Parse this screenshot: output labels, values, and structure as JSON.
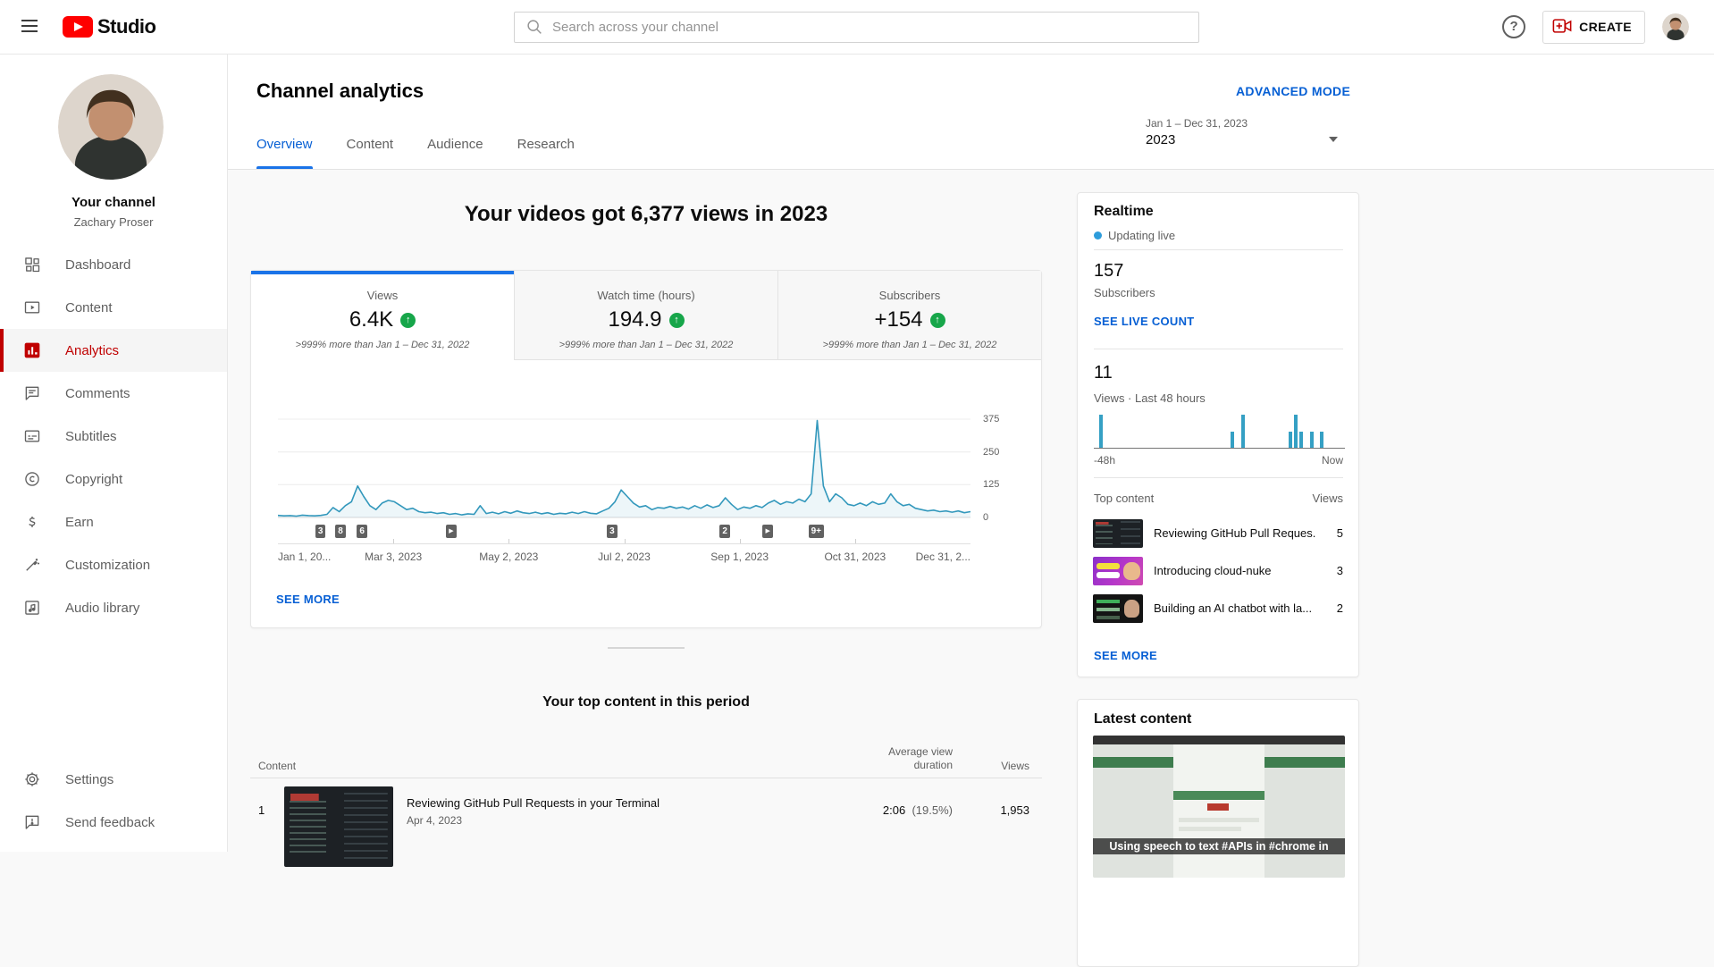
{
  "topbar": {
    "logo_text": "Studio",
    "search": {
      "placeholder": "Search across your channel"
    },
    "help_glyph": "?",
    "create_label": "CREATE"
  },
  "sidebar": {
    "channel_label": "Your channel",
    "owner_name": "Zachary Proser",
    "items": [
      {
        "label": "Dashboard",
        "icon": "dashboard",
        "active": false
      },
      {
        "label": "Content",
        "icon": "content",
        "active": false
      },
      {
        "label": "Analytics",
        "icon": "analytics",
        "active": true
      },
      {
        "label": "Comments",
        "icon": "comments",
        "active": false
      },
      {
        "label": "Subtitles",
        "icon": "subtitles",
        "active": false
      },
      {
        "label": "Copyright",
        "icon": "copyright",
        "active": false
      },
      {
        "label": "Earn",
        "icon": "earn",
        "active": false
      },
      {
        "label": "Customization",
        "icon": "customization",
        "active": false
      },
      {
        "label": "Audio library",
        "icon": "audio-library",
        "active": false
      }
    ],
    "footer_items": [
      {
        "label": "Settings",
        "icon": "settings"
      },
      {
        "label": "Send feedback",
        "icon": "feedback"
      }
    ]
  },
  "header": {
    "title": "Channel analytics",
    "advanced_mode": "ADVANCED MODE",
    "tabs": [
      {
        "label": "Overview",
        "active": true
      },
      {
        "label": "Content",
        "active": false
      },
      {
        "label": "Audience",
        "active": false
      },
      {
        "label": "Research",
        "active": false
      }
    ],
    "date_range": "Jan 1 – Dec 31, 2023",
    "date_label": "2023"
  },
  "overview": {
    "headline": "Your videos got 6,377 views in 2023",
    "metrics": [
      {
        "label": "Views",
        "value": "6.4K",
        "delta": ">999% more than Jan 1 – Dec 31, 2022",
        "active": true
      },
      {
        "label": "Watch time (hours)",
        "value": "194.9",
        "delta": ">999% more than Jan 1 – Dec 31, 2022",
        "active": false
      },
      {
        "label": "Subscribers",
        "value": "+154",
        "delta": ">999% more than Jan 1 – Dec 31, 2022",
        "active": false
      }
    ],
    "see_more": "SEE MORE"
  },
  "chart_data": [
    {
      "id": "views-over-time",
      "type": "area",
      "series_label": "Views",
      "x_ticks": [
        "Jan 1, 20...",
        "Mar 3, 2023",
        "May 2, 2023",
        "Jul 2, 2023",
        "Sep 1, 2023",
        "Oct 31, 2023",
        "Dec 31, 2..."
      ],
      "y_ticks": [
        375,
        250,
        125,
        0
      ],
      "ylim": [
        0,
        400
      ],
      "grid": true,
      "line_color": "#3398bc",
      "fill_color": "rgba(51,152,188,0.09)",
      "values": [
        8,
        6,
        7,
        5,
        9,
        7,
        6,
        8,
        12,
        38,
        22,
        45,
        60,
        120,
        80,
        45,
        30,
        55,
        65,
        60,
        45,
        30,
        35,
        22,
        18,
        20,
        15,
        18,
        12,
        15,
        10,
        14,
        12,
        45,
        15,
        20,
        14,
        22,
        16,
        25,
        18,
        15,
        20,
        14,
        18,
        12,
        16,
        14,
        20,
        15,
        22,
        16,
        14,
        25,
        35,
        60,
        105,
        80,
        55,
        40,
        45,
        30,
        38,
        35,
        42,
        35,
        40,
        32,
        45,
        35,
        48,
        38,
        45,
        75,
        50,
        30,
        40,
        35,
        45,
        38,
        55,
        65,
        50,
        60,
        55,
        70,
        60,
        90,
        370,
        120,
        60,
        90,
        75,
        50,
        45,
        55,
        45,
        60,
        50,
        55,
        90,
        60,
        45,
        50,
        35,
        30,
        25,
        28,
        22,
        25,
        20,
        25,
        18,
        22
      ],
      "markers": [
        {
          "pos": 0.063,
          "label": "3"
        },
        {
          "pos": 0.092,
          "label": "8"
        },
        {
          "pos": 0.123,
          "label": "6"
        },
        {
          "pos": 0.252,
          "label": "play"
        },
        {
          "pos": 0.484,
          "label": "3"
        },
        {
          "pos": 0.647,
          "label": "2"
        },
        {
          "pos": 0.709,
          "label": "play"
        },
        {
          "pos": 0.775,
          "label": "9+"
        }
      ]
    },
    {
      "id": "realtime-views-48h",
      "type": "bar",
      "total_views": 11,
      "slots": 48,
      "bars": [
        {
          "slot": 1,
          "value": 2
        },
        {
          "slot": 26,
          "value": 1
        },
        {
          "slot": 28,
          "value": 2
        },
        {
          "slot": 37,
          "value": 1
        },
        {
          "slot": 38,
          "value": 2
        },
        {
          "slot": 39,
          "value": 1
        },
        {
          "slot": 41,
          "value": 1
        },
        {
          "slot": 43,
          "value": 1
        }
      ],
      "bar_color": "#35a0c4",
      "x_labels": [
        "-48h",
        "Now"
      ]
    }
  ],
  "top_content": {
    "heading": "Your top content in this period",
    "columns": {
      "content": "Content",
      "duration": "Average view duration",
      "views": "Views"
    },
    "rows": [
      {
        "rank": "1",
        "title": "Reviewing GitHub Pull Requests in your Terminal",
        "date": "Apr 4, 2023",
        "duration": "2:06",
        "duration_pct": "(19.5%)",
        "views": "1,953",
        "thumb": "terminal"
      }
    ]
  },
  "realtime": {
    "title": "Realtime",
    "updating": "Updating live",
    "subscribers_value": "157",
    "subscribers_label": "Subscribers",
    "live_count_link": "SEE LIVE COUNT",
    "views_value": "11",
    "views_label": "Views · Last 48 hours",
    "axis_left": "-48h",
    "axis_right": "Now",
    "top_content_label": "Top content",
    "views_col_label": "Views",
    "items": [
      {
        "title": "Reviewing GitHub Pull Reques...",
        "views": "5",
        "thumb": "terminal"
      },
      {
        "title": "Introducing cloud-nuke",
        "views": "3",
        "thumb": "cloudnuke"
      },
      {
        "title": "Building an AI chatbot with la...",
        "views": "2",
        "thumb": "chatbot"
      }
    ],
    "see_more": "SEE MORE"
  },
  "latest_content": {
    "title": "Latest content",
    "caption": "Using speech to text #APIs in #chrome in"
  },
  "colors": {
    "link_blue": "#065fd4",
    "tab_blue": "#1a73e8",
    "chart_line": "#3398bc",
    "realtime_bar": "#35a0c4",
    "positive_green": "#17a64a",
    "active_red": "#c00000",
    "live_dot": "#2d9cdb",
    "brand_red": "#ff0000"
  }
}
